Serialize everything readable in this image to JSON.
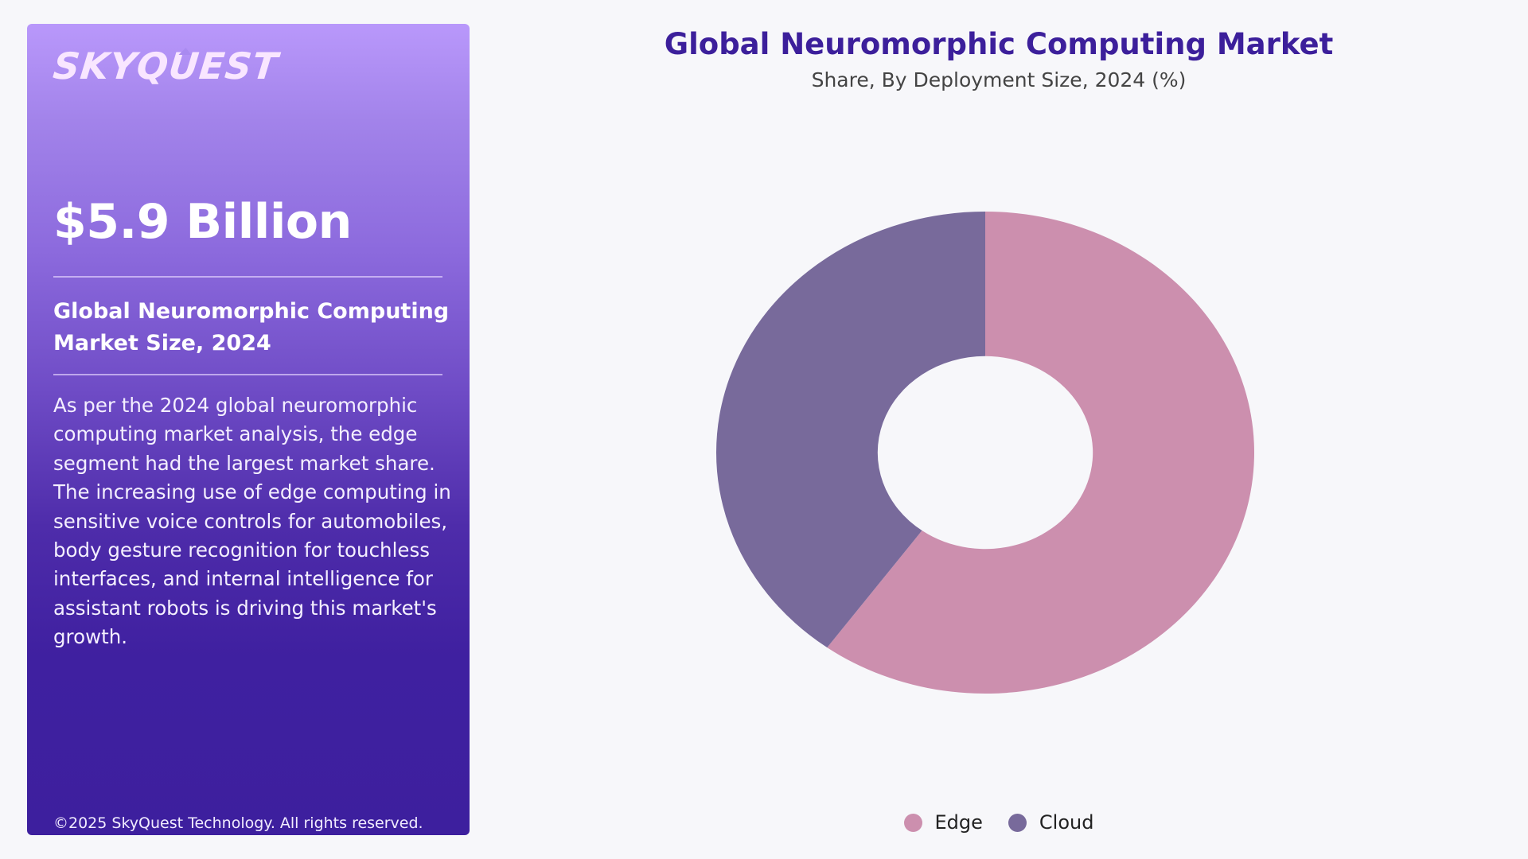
{
  "panel": {
    "logo": "SKYQUEST",
    "market_value": "$5.9 Billion",
    "size_label": "Global Neuromorphic Computing Market Size, 2024",
    "description": "As per the 2024 global neuromorphic computing market analysis, the edge segment had the largest market share. The increasing use of edge computing in sensitive voice controls for automobiles, body gesture recognition for touchless interfaces, and internal intelligence for assistant robots is driving this market's growth.",
    "copyright": "©2025 SkyQuest Technology. All rights reserved."
  },
  "chart": {
    "title": "Global Neuromorphic Computing Market",
    "subtitle": "Share, By Deployment Size, 2024 (%)"
  },
  "legend": [
    {
      "label": "Edge",
      "color": "#cc8fae"
    },
    {
      "label": "Cloud",
      "color": "#786a9b"
    }
  ],
  "colors": {
    "title": "#3c1f9b",
    "panel_top": "#b998fb",
    "panel_bottom": "#3d1f9e",
    "background": "#f7f7fa"
  },
  "chart_data": {
    "type": "pie",
    "variant": "donut",
    "title": "Global Neuromorphic Computing Market",
    "subtitle": "Share, By Deployment Size, 2024 (%)",
    "categories": [
      "Edge",
      "Cloud"
    ],
    "values": [
      60,
      40
    ],
    "colors": [
      "#cc8fae",
      "#786a9b"
    ],
    "start_angle_deg": 0,
    "direction": "clockwise",
    "inner_radius_ratio": 0.4,
    "legend_position": "bottom",
    "data_labels": false
  }
}
